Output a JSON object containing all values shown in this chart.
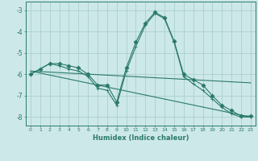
{
  "title": "",
  "xlabel": "Humidex (Indice chaleur)",
  "ylabel": "",
  "background_color": "#cde8e8",
  "grid_color": "#aacfcf",
  "line_color": "#2a7a6a",
  "xlim": [
    -0.5,
    23.5
  ],
  "ylim": [
    -8.4,
    -2.6
  ],
  "xticks": [
    0,
    1,
    2,
    3,
    4,
    5,
    6,
    7,
    8,
    9,
    10,
    11,
    12,
    13,
    14,
    15,
    16,
    17,
    18,
    19,
    20,
    21,
    22,
    23
  ],
  "yticks": [
    -8,
    -7,
    -6,
    -5,
    -4,
    -3
  ],
  "series": [
    {
      "x": [
        0,
        1,
        2,
        3,
        4,
        5,
        6,
        7,
        8,
        9,
        10,
        11,
        12,
        13,
        14,
        15,
        16,
        17,
        18,
        19,
        20,
        21,
        22,
        23
      ],
      "y": [
        -6.0,
        -5.75,
        -5.5,
        -5.5,
        -5.6,
        -5.7,
        -6.0,
        -6.5,
        -6.5,
        -7.3,
        -5.7,
        -4.5,
        -3.6,
        -3.1,
        -3.35,
        -4.45,
        -6.0,
        -6.25,
        -6.5,
        -7.0,
        -7.45,
        -7.7,
        -7.95,
        -7.95
      ],
      "marker": "D",
      "markersize": 2.5
    },
    {
      "x": [
        0,
        1,
        2,
        3,
        4,
        5,
        6,
        7,
        8,
        9,
        10,
        11,
        12,
        13,
        14,
        15,
        16,
        17,
        18,
        19,
        20,
        21,
        22,
        23
      ],
      "y": [
        -6.0,
        -5.75,
        -5.5,
        -5.6,
        -5.75,
        -5.85,
        -6.1,
        -6.65,
        -6.75,
        -7.45,
        -5.85,
        -4.7,
        -3.7,
        -3.15,
        -3.4,
        -4.5,
        -6.1,
        -6.45,
        -6.75,
        -7.15,
        -7.55,
        -7.85,
        -8.0,
        -8.0
      ],
      "marker": "+",
      "markersize": 3.5
    },
    {
      "x": [
        0,
        23
      ],
      "y": [
        -5.85,
        -6.4
      ],
      "marker": null,
      "markersize": 0
    },
    {
      "x": [
        0,
        23
      ],
      "y": [
        -5.85,
        -8.0
      ],
      "marker": null,
      "markersize": 0
    }
  ]
}
